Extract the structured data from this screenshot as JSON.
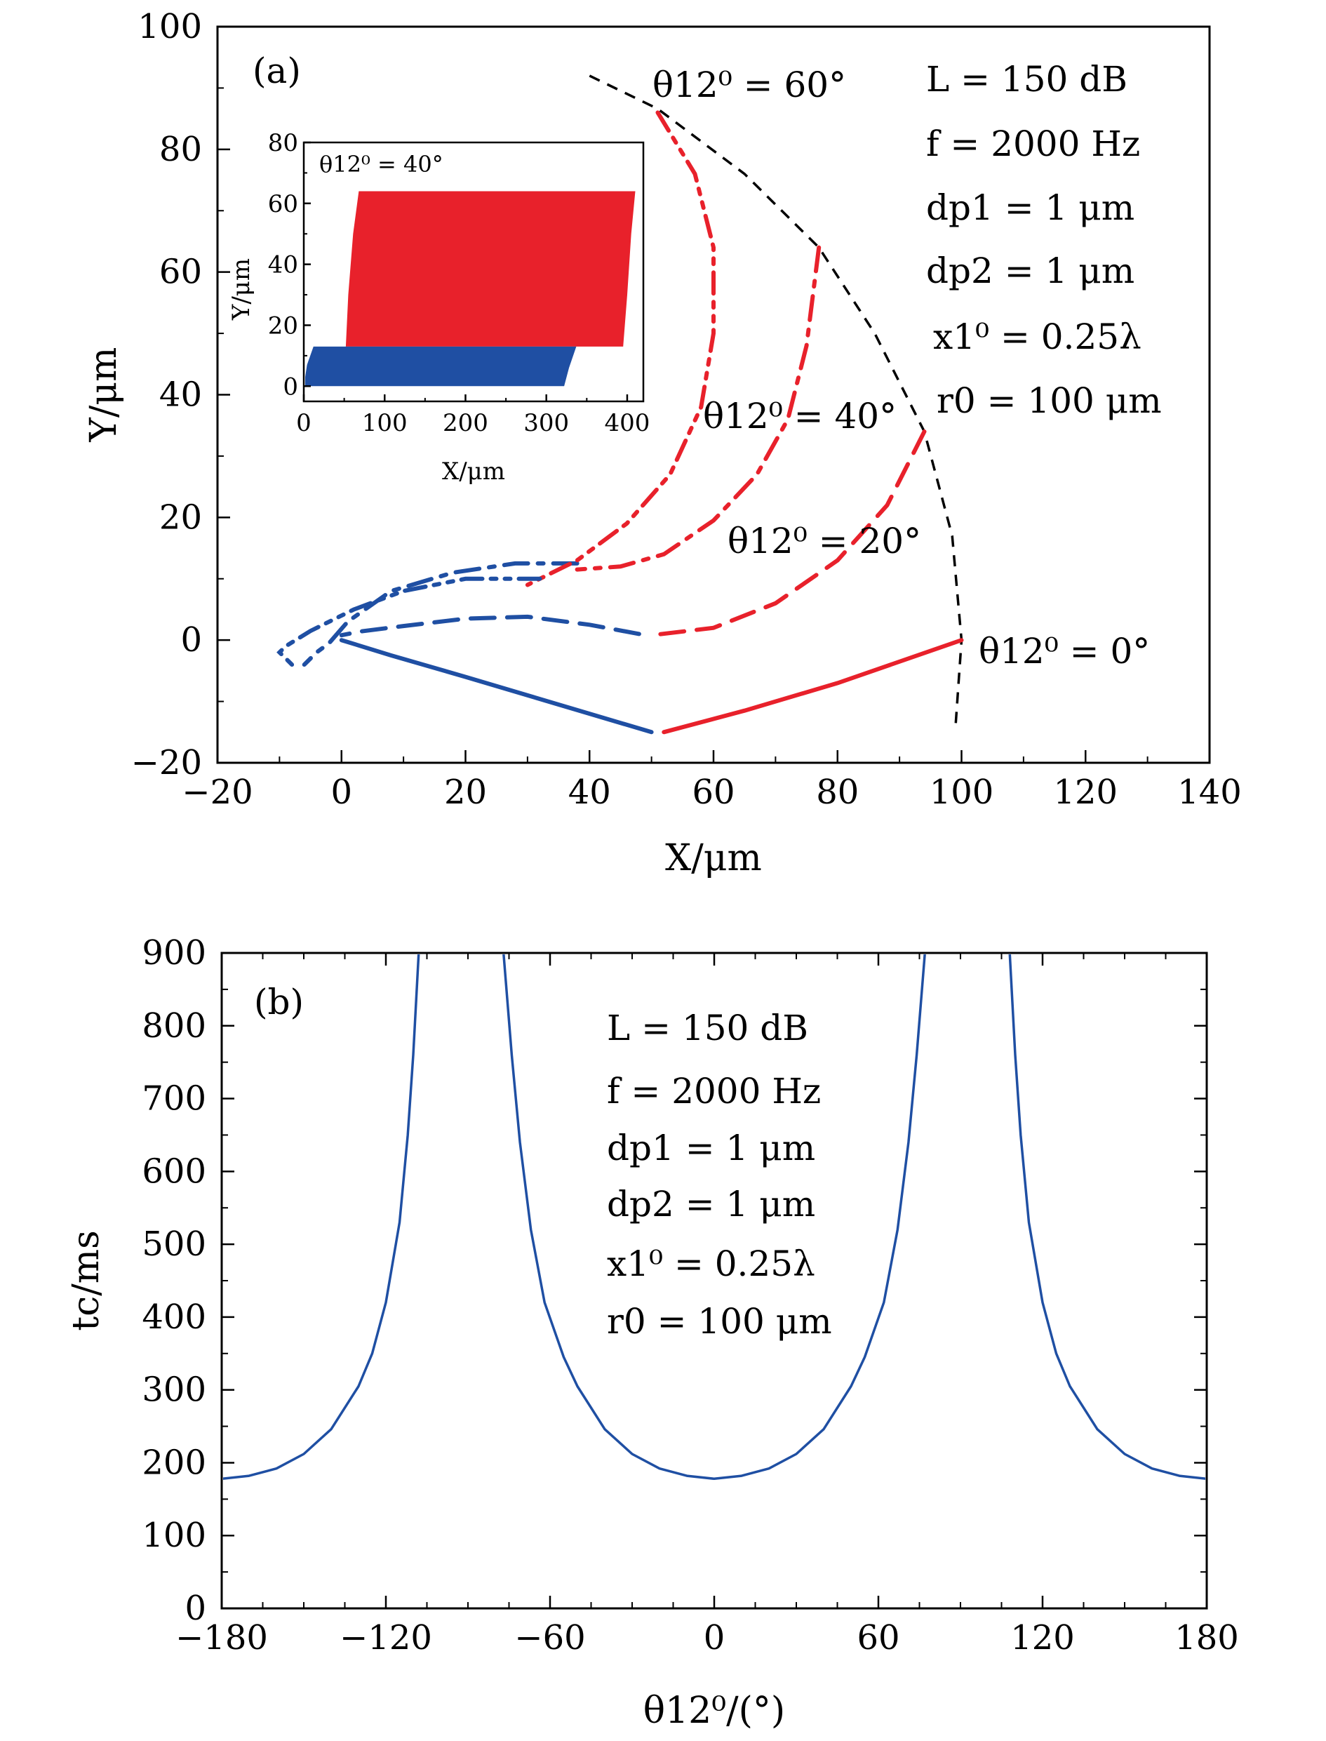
{
  "chart_data": [
    {
      "panel": "(a)",
      "type": "line",
      "xlabel": "X/μm",
      "ylabel": "Y/μm",
      "xlim": [
        -20,
        140
      ],
      "ylim": [
        -20,
        100
      ],
      "xticks": [
        "−20",
        "0",
        "20",
        "40",
        "60",
        "80",
        "100",
        "120",
        "140"
      ],
      "yticks": [
        "−20",
        "0",
        "20",
        "40",
        "60",
        "80",
        "100"
      ],
      "xtick_values": [
        -20,
        0,
        20,
        40,
        60,
        80,
        100,
        120,
        140
      ],
      "ytick_values": [
        -20,
        0,
        20,
        40,
        60,
        80,
        100
      ],
      "colors": {
        "particle1": "#e8212b",
        "particle2": "#1f4fa3",
        "boundary": "#000000"
      },
      "annotations": [
        "L = 150 dB",
        "f = 2000 Hz",
        "dp1 = 1 μm",
        "dp2 = 1 μm",
        "x1⁰ = 0.25λ",
        "r0 = 100 μm"
      ],
      "series": [
        {
          "name": "θ12⁰ = 0°",
          "style": "solid",
          "red": [
            [
              100,
              0
            ],
            [
              80,
              -7
            ],
            [
              65,
              -11.5
            ],
            [
              52,
              -15
            ]
          ],
          "blue": [
            [
              50,
              -15
            ],
            [
              35,
              -10.5
            ],
            [
              20,
              -6
            ],
            [
              8,
              -2.5
            ],
            [
              0,
              0
            ]
          ]
        },
        {
          "name": "θ12⁰ = 20°",
          "style": "dashed",
          "red": [
            [
              94,
              34
            ],
            [
              88,
              22
            ],
            [
              80,
              13
            ],
            [
              70,
              6
            ],
            [
              60,
              2
            ],
            [
              50,
              0.8
            ]
          ],
          "blue": [
            [
              48,
              1
            ],
            [
              40,
              2.5
            ],
            [
              30,
              3.8
            ],
            [
              20,
              3.5
            ],
            [
              10,
              2.3
            ],
            [
              3,
              1.4
            ],
            [
              0,
              0.8
            ]
          ]
        },
        {
          "name": "θ12⁰ = 40°",
          "style": "dashdot",
          "red": [
            [
              77,
              64
            ],
            [
              75,
              48
            ],
            [
              72,
              36
            ],
            [
              67,
              27
            ],
            [
              60,
              19.5
            ],
            [
              52,
              14
            ],
            [
              45,
              12
            ],
            [
              38,
              11.5
            ]
          ],
          "blue": [
            [
              38,
              12.5
            ],
            [
              28,
              12.5
            ],
            [
              18,
              11
            ],
            [
              8,
              8
            ],
            [
              1,
              3
            ],
            [
              -2,
              -0.5
            ],
            [
              -4,
              -2
            ],
            [
              -6,
              -4
            ]
          ]
        },
        {
          "name": "θ12⁰ = 60°",
          "style": "dashdotdot",
          "red": [
            [
              51,
              86
            ],
            [
              57,
              76
            ],
            [
              60,
              64
            ],
            [
              60,
              50
            ],
            [
              58,
              38
            ],
            [
              53,
              27
            ],
            [
              46,
              19
            ],
            [
              38,
              13
            ],
            [
              30,
              9
            ]
          ],
          "blue": [
            [
              32,
              10
            ],
            [
              20,
              10
            ],
            [
              10,
              8
            ],
            [
              2,
              5
            ],
            [
              -5,
              1.5
            ],
            [
              -9,
              -1
            ],
            [
              -10,
              -2
            ],
            [
              -8,
              -4
            ]
          ]
        }
      ],
      "boundary": {
        "style": "dashed",
        "points": [
          [
            40,
            92
          ],
          [
            51,
            86.6
          ],
          [
            65,
            76
          ],
          [
            77,
            64
          ],
          [
            86,
            50
          ],
          [
            94,
            34
          ],
          [
            98.5,
            17
          ],
          [
            100,
            0
          ],
          [
            99,
            -14.5
          ]
        ]
      },
      "curve_labels": [
        "θ12⁰ = 60°",
        "θ12⁰ = 40°",
        "θ12⁰ = 20°",
        "θ12⁰ = 0°"
      ],
      "inset": {
        "xlabel": "X/μm",
        "ylabel": "Y/μm",
        "xlim": [
          0,
          420
        ],
        "ylim": [
          -5,
          80
        ],
        "xticks": [
          "0",
          "100",
          "200",
          "300",
          "400"
        ],
        "yticks": [
          "0",
          "20",
          "40",
          "60",
          "80"
        ],
        "xtick_values": [
          0,
          100,
          200,
          300,
          400
        ],
        "ytick_values": [
          0,
          20,
          40,
          60,
          80
        ],
        "annotation": "θ12⁰ = 40°",
        "red_region": [
          [
            52,
            13
          ],
          [
            55,
            30
          ],
          [
            61,
            50
          ],
          [
            68,
            64
          ],
          [
            410,
            64
          ],
          [
            405,
            50
          ],
          [
            400,
            30
          ],
          [
            395,
            13
          ]
        ],
        "blue_region": [
          [
            0,
            0
          ],
          [
            4,
            7
          ],
          [
            12,
            13
          ],
          [
            337,
            13
          ],
          [
            328,
            6
          ],
          [
            322,
            0
          ]
        ]
      }
    },
    {
      "panel": "(b)",
      "type": "line",
      "xlabel": "θ12⁰/(°)",
      "ylabel": "tc/ms",
      "xlim": [
        -180,
        180
      ],
      "ylim": [
        0,
        900
      ],
      "xticks": [
        "−180",
        "−120",
        "−60",
        "0",
        "60",
        "120",
        "180"
      ],
      "yticks": [
        "0",
        "100",
        "200",
        "300",
        "400",
        "500",
        "600",
        "700",
        "800",
        "900"
      ],
      "xtick_values": [
        -180,
        -120,
        -60,
        0,
        60,
        120,
        180
      ],
      "ytick_values": [
        0,
        100,
        200,
        300,
        400,
        500,
        600,
        700,
        800,
        900
      ],
      "color": "#1f4fa3",
      "annotations": [
        "L = 150 dB",
        "f = 2000 Hz",
        "dp1 = 1 μm",
        "dp2 = 1 μm",
        "x1⁰ = 0.25λ",
        "r0 = 100 μm"
      ],
      "series": [
        {
          "x": [
            -180,
            -170,
            -160,
            -150,
            -140,
            -130,
            -125,
            -120,
            -115,
            -112,
            -110,
            -108
          ],
          "y": [
            178,
            182,
            192,
            212,
            246,
            305,
            350,
            420,
            530,
            650,
            760,
            900
          ]
        },
        {
          "x": [
            -77,
            -74,
            -71,
            -67,
            -62,
            -55,
            -50,
            -40,
            -30,
            -20,
            -10,
            0,
            10,
            20,
            30,
            40,
            50,
            55,
            62,
            67,
            71,
            74,
            77
          ],
          "y": [
            900,
            760,
            640,
            520,
            420,
            345,
            305,
            246,
            212,
            192,
            182,
            178,
            182,
            192,
            212,
            246,
            305,
            345,
            420,
            520,
            640,
            760,
            900
          ]
        },
        {
          "x": [
            108,
            110,
            112,
            115,
            120,
            125,
            130,
            140,
            150,
            160,
            170,
            180
          ],
          "y": [
            900,
            760,
            650,
            530,
            420,
            350,
            305,
            246,
            212,
            192,
            182,
            178
          ]
        }
      ]
    }
  ]
}
